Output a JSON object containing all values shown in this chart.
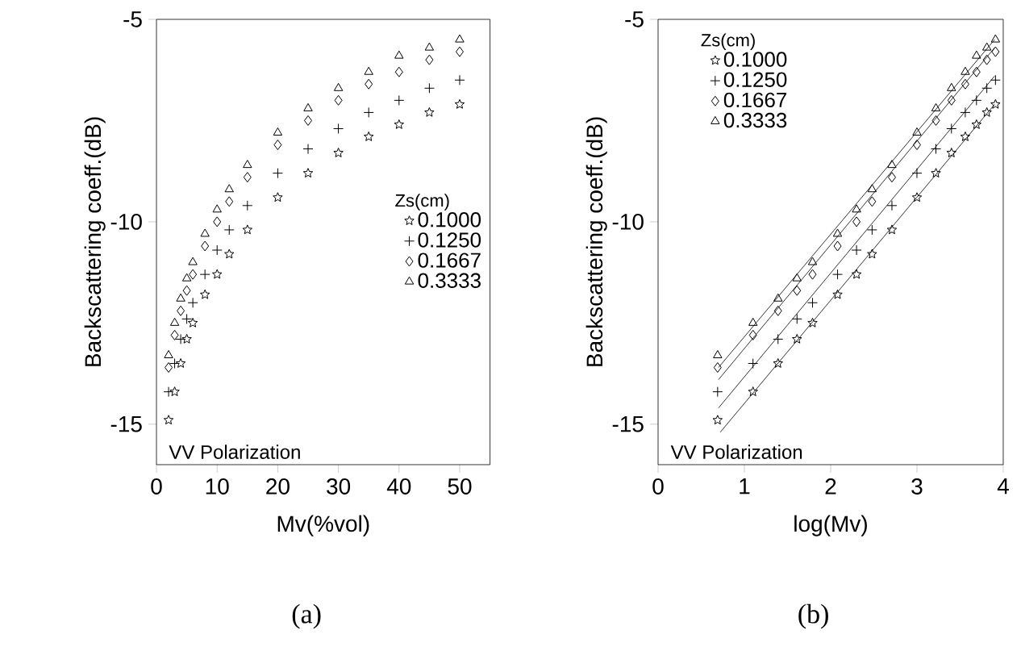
{
  "chart_data": [
    {
      "type": "scatter",
      "xlabel": "Mv(%vol)",
      "ylabel": "Backscattering coeff.(dB)",
      "legend_title": "Zs(cm)",
      "legend": "right",
      "grid": false,
      "xlim": [
        0,
        55
      ],
      "xticks": [
        0,
        10,
        20,
        30,
        40,
        50
      ],
      "ylim": [
        -16,
        -5
      ],
      "yticks": [
        -15,
        -10,
        -5
      ],
      "x": [
        2,
        3,
        4,
        5,
        6,
        8,
        10,
        12,
        15,
        20,
        25,
        30,
        35,
        40,
        45,
        50
      ],
      "series": [
        {
          "name": "0.1000",
          "color": "#000000",
          "marker": "star",
          "values": [
            -14.9,
            -14.2,
            -13.5,
            -12.9,
            -12.5,
            -11.8,
            -11.3,
            -10.8,
            -10.2,
            -9.4,
            -8.8,
            -8.3,
            -7.9,
            -7.6,
            -7.3,
            -7.1
          ]
        },
        {
          "name": "0.1250",
          "color": "#000000",
          "marker": "cross",
          "values": [
            -14.2,
            -13.5,
            -12.9,
            -12.4,
            -12.0,
            -11.3,
            -10.7,
            -10.2,
            -9.6,
            -8.8,
            -8.2,
            -7.7,
            -7.3,
            -7.0,
            -6.7,
            -6.5
          ]
        },
        {
          "name": "0.1667",
          "color": "#000000",
          "marker": "diamond",
          "values": [
            -13.6,
            -12.8,
            -12.2,
            -11.7,
            -11.3,
            -10.6,
            -10.0,
            -9.5,
            -8.9,
            -8.1,
            -7.5,
            -7.0,
            -6.6,
            -6.3,
            -6.0,
            -5.8
          ]
        },
        {
          "name": "0.3333",
          "color": "#000000",
          "marker": "triangle",
          "values": [
            -13.3,
            -12.5,
            -11.9,
            -11.4,
            -11.0,
            -10.3,
            -9.7,
            -9.2,
            -8.6,
            -7.8,
            -7.2,
            -6.7,
            -6.3,
            -5.9,
            -5.7,
            -5.5
          ]
        }
      ],
      "annotations": [
        "VV Polarization",
        "(a)"
      ]
    },
    {
      "type": "scatter",
      "xlabel": "log(Mv)",
      "ylabel": "Backscattering coeff.(dB)",
      "legend_title": "Zs(cm)",
      "legend": "top left",
      "grid": false,
      "xlim": [
        0,
        4
      ],
      "xticks": [
        0,
        1,
        2,
        3,
        4
      ],
      "ylim": [
        -16,
        -5
      ],
      "yticks": [
        -15,
        -10,
        -5
      ],
      "x": [
        0.69,
        1.1,
        1.39,
        1.61,
        1.79,
        2.08,
        2.3,
        2.48,
        2.71,
        3.0,
        3.22,
        3.4,
        3.56,
        3.69,
        3.81,
        3.91
      ],
      "series": [
        {
          "name": "0.1000",
          "color": "#000000",
          "marker": "star",
          "values": [
            -14.9,
            -14.2,
            -13.5,
            -12.9,
            -12.5,
            -11.8,
            -11.3,
            -10.8,
            -10.2,
            -9.4,
            -8.8,
            -8.3,
            -7.9,
            -7.6,
            -7.3,
            -7.1
          ]
        },
        {
          "name": "0.1250",
          "color": "#000000",
          "marker": "cross",
          "values": [
            -14.2,
            -13.5,
            -12.9,
            -12.4,
            -12.0,
            -11.3,
            -10.7,
            -10.2,
            -9.6,
            -8.8,
            -8.2,
            -7.7,
            -7.3,
            -7.0,
            -6.7,
            -6.5
          ]
        },
        {
          "name": "0.1667",
          "color": "#000000",
          "marker": "diamond",
          "values": [
            -13.6,
            -12.8,
            -12.2,
            -11.7,
            -11.3,
            -10.6,
            -10.0,
            -9.5,
            -8.9,
            -8.1,
            -7.5,
            -7.0,
            -6.6,
            -6.3,
            -6.0,
            -5.8
          ]
        },
        {
          "name": "0.3333",
          "color": "#000000",
          "marker": "triangle",
          "values": [
            -13.3,
            -12.5,
            -11.9,
            -11.4,
            -11.0,
            -10.3,
            -9.7,
            -9.2,
            -8.6,
            -7.8,
            -7.2,
            -6.7,
            -6.3,
            -5.9,
            -5.7,
            -5.5
          ]
        },
        {
          "type": "line",
          "color": "#000000",
          "marker": "none",
          "x": [
            0.72,
            3.9
          ],
          "values": [
            -15.2,
            -7.1
          ]
        },
        {
          "type": "line",
          "color": "#000000",
          "marker": "none",
          "x": [
            0.7,
            3.9
          ],
          "values": [
            -14.6,
            -6.4
          ]
        },
        {
          "type": "line",
          "color": "#000000",
          "marker": "none",
          "x": [
            0.7,
            3.9
          ],
          "values": [
            -13.9,
            -5.7
          ]
        },
        {
          "type": "line",
          "color": "#000000",
          "marker": "none",
          "x": [
            0.7,
            3.9
          ],
          "values": [
            -13.6,
            -5.5
          ]
        }
      ],
      "annotations": [
        "VV Polarization",
        "(b)"
      ]
    }
  ]
}
